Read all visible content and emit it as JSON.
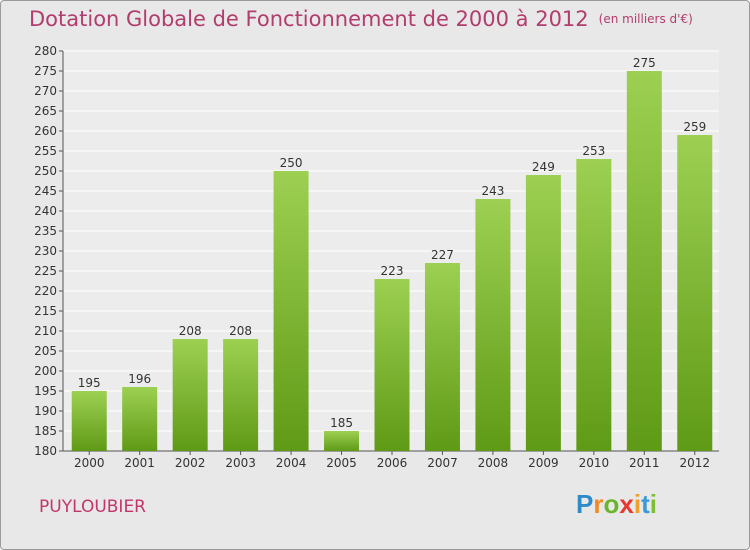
{
  "header": {
    "title": "Dotation Globale de Fonctionnement de 2000 à 2012",
    "unit": "(en milliers d'€)"
  },
  "footer": {
    "town": "PUYLOUBIER",
    "brand": "Proxiti"
  },
  "colors": {
    "bar_light": "#9dd052",
    "bar_dark": "#5f9a16",
    "title": "#b23c6e",
    "background": "#e8e8e8"
  },
  "chart_data": {
    "type": "bar",
    "categories": [
      "2000",
      "2001",
      "2002",
      "2003",
      "2004",
      "2005",
      "2006",
      "2007",
      "2008",
      "2009",
      "2010",
      "2011",
      "2012"
    ],
    "values": [
      195,
      196,
      208,
      208,
      250,
      185,
      223,
      227,
      243,
      249,
      253,
      275,
      259
    ],
    "ylim": [
      180,
      280
    ],
    "yticks": [
      180,
      185,
      190,
      195,
      200,
      205,
      210,
      215,
      220,
      225,
      230,
      235,
      240,
      245,
      250,
      255,
      260,
      265,
      270,
      275,
      280
    ],
    "grid": true,
    "data_labels": true
  }
}
